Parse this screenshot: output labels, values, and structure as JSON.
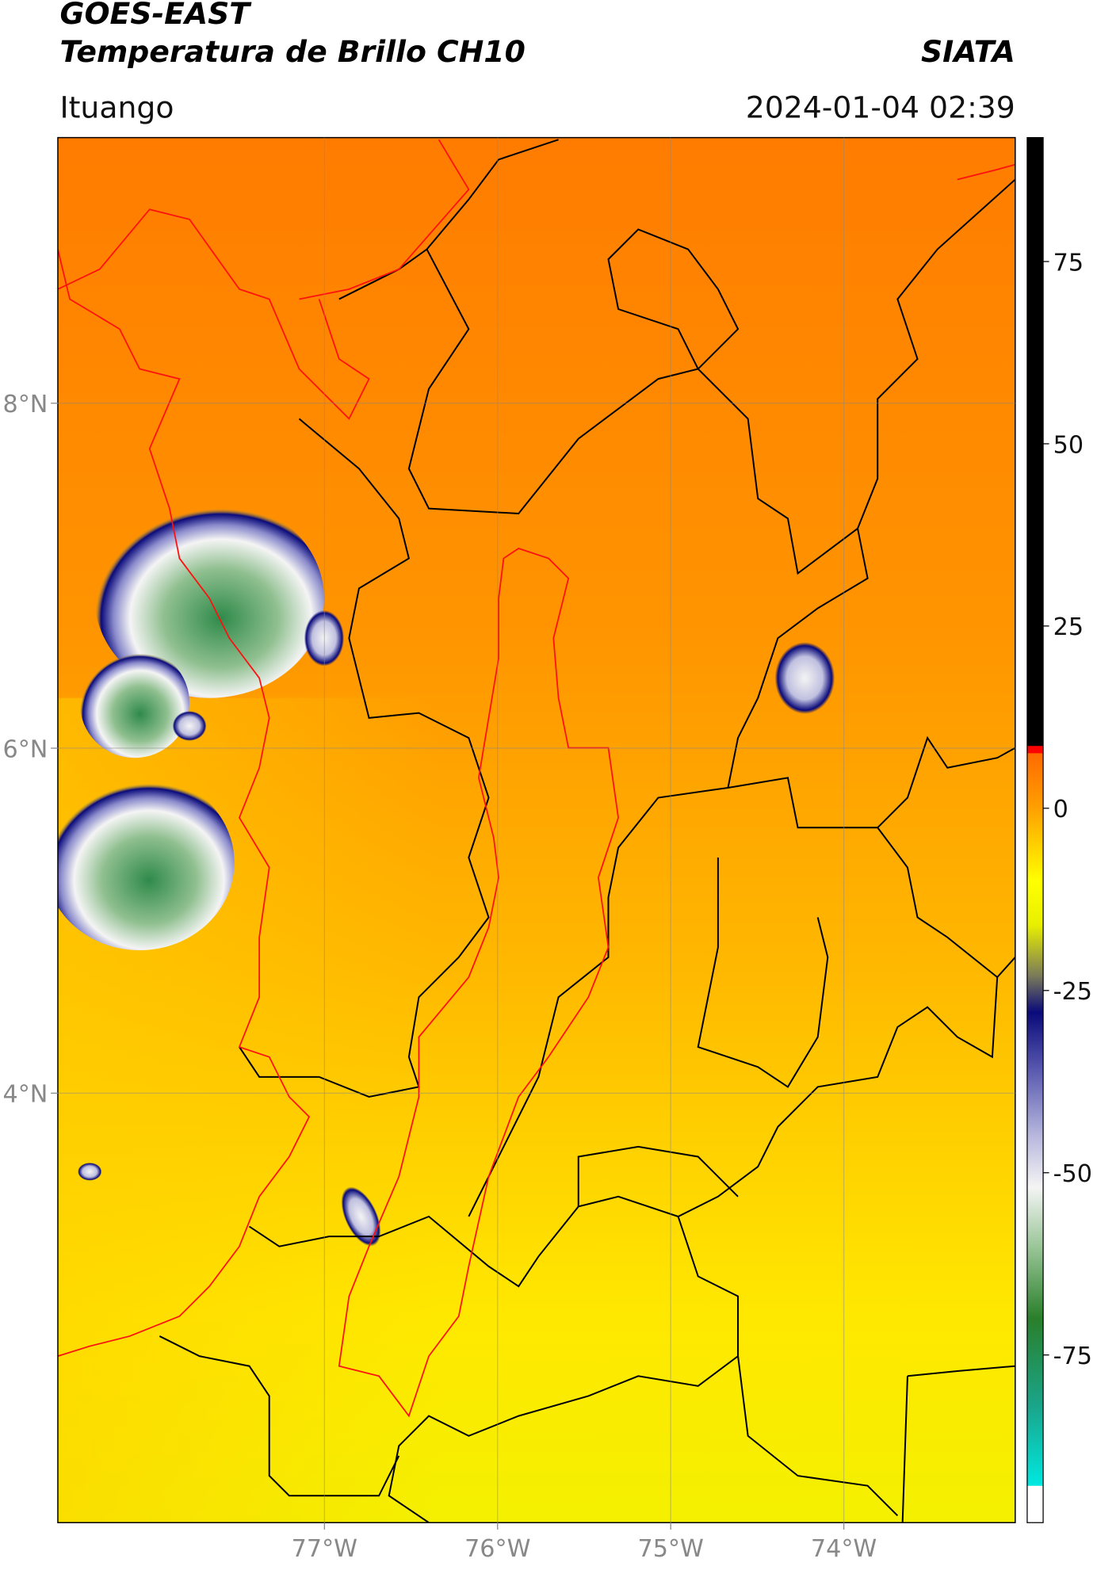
{
  "header": {
    "title_line1": "GOES-EAST",
    "title_line2": "Temperatura de Brillo CH10",
    "source": "SIATA",
    "location": "Ituango",
    "datetime": "2024-01-04 02:39"
  },
  "map": {
    "xlim": [
      -78.54,
      -73.01
    ],
    "ylim": [
      1.51,
      9.54
    ],
    "xticks": [
      {
        "value": -77,
        "label": "77°W"
      },
      {
        "value": -76,
        "label": "76°W"
      },
      {
        "value": -75,
        "label": "75°W"
      },
      {
        "value": -74,
        "label": "74°W"
      }
    ],
    "yticks": [
      {
        "value": 8,
        "label": "8°N"
      },
      {
        "value": 6,
        "label": "6°N"
      },
      {
        "value": 4,
        "label": "4°N"
      }
    ],
    "grid": true
  },
  "colorbar": {
    "lim": [
      -98,
      92
    ],
    "ticks": [
      75,
      50,
      25,
      0,
      -25,
      -50,
      -75
    ],
    "stops": [
      {
        "value": -98,
        "color": "#ffffff"
      },
      {
        "value": -93,
        "color": "#ffffff"
      },
      {
        "value": -92.9,
        "color": "#00e8e0"
      },
      {
        "value": -82,
        "color": "#1aa58a"
      },
      {
        "value": -70,
        "color": "#2a7f2a"
      },
      {
        "value": -60,
        "color": "#9cc79a"
      },
      {
        "value": -52,
        "color": "#f4f4f4"
      },
      {
        "value": -45,
        "color": "#b8b8de"
      },
      {
        "value": -36,
        "color": "#5a5ab0"
      },
      {
        "value": -28,
        "color": "#0a0a7a"
      },
      {
        "value": -23,
        "color": "#7a7a5a"
      },
      {
        "value": -16,
        "color": "#e8f000"
      },
      {
        "value": -10,
        "color": "#ffff00"
      },
      {
        "value": 0,
        "color": "#ffa000"
      },
      {
        "value": 7.5,
        "color": "#ff6a00"
      },
      {
        "value": 7.6,
        "color": "#ff0000"
      },
      {
        "value": 8.5,
        "color": "#ff0000"
      },
      {
        "value": 8.6,
        "color": "#000000"
      },
      {
        "value": 92,
        "color": "#000000"
      }
    ]
  }
}
